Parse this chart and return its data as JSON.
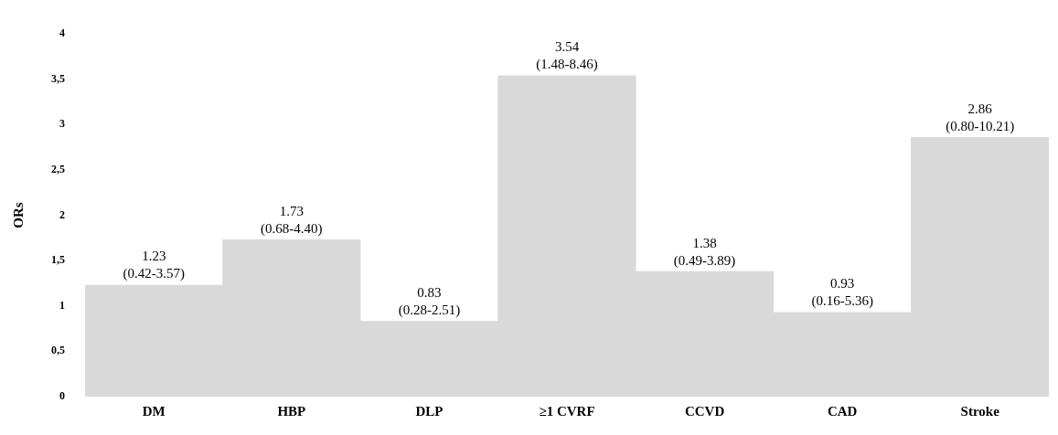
{
  "chart_data": {
    "type": "bar",
    "ylabel": "ORs",
    "categories": [
      "DM",
      "HBP",
      "DLP",
      "≥1 CVRF",
      "CCVD",
      "CAD",
      "Stroke"
    ],
    "values": [
      1.23,
      1.73,
      0.83,
      3.54,
      1.38,
      0.93,
      2.86
    ],
    "color": "#d9d9d9",
    "value_labels": [
      "1.23\n(0.42-3.57)",
      "1.73\n(0.68-4.40)",
      "0.83\n(0.28-2.51)",
      "3.54\n(1.48-8.46)",
      "1.38\n(0.49-3.89)",
      "0.93\n(0.16-5.36)",
      "2.86\n(0.80-10.21)"
    ],
    "ylim": [
      0,
      4
    ],
    "yticks": [
      0,
      {
        "value": 0.5,
        "label": "0,5"
      },
      1,
      {
        "value": 1.5,
        "label": "1,5"
      },
      2,
      {
        "value": 2.5,
        "label": "2,5"
      },
      3,
      {
        "value": 3.5,
        "label": "3,5"
      },
      4
    ],
    "grid": false,
    "legend": false
  }
}
